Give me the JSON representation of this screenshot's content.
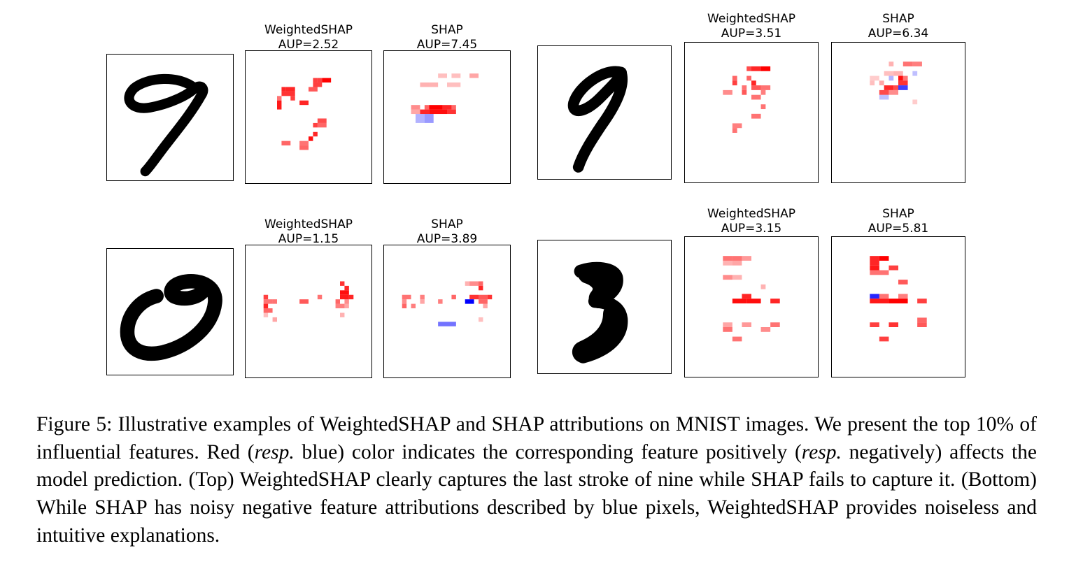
{
  "figure": {
    "examples": [
      {
        "id": "top-left",
        "digit_label": "9",
        "weightedshap": {
          "method": "WeightedSHAP",
          "aup": "AUP=2.52"
        },
        "shap": {
          "method": "SHAP",
          "aup": "AUP=7.45"
        }
      },
      {
        "id": "top-right",
        "digit_label": "9",
        "weightedshap": {
          "method": "WeightedSHAP",
          "aup": "AUP=3.51"
        },
        "shap": {
          "method": "SHAP",
          "aup": "AUP=6.34"
        }
      },
      {
        "id": "bottom-left",
        "digit_label": "0",
        "weightedshap": {
          "method": "WeightedSHAP",
          "aup": "AUP=1.15"
        },
        "shap": {
          "method": "SHAP",
          "aup": "AUP=3.89"
        }
      },
      {
        "id": "bottom-right",
        "digit_label": "3",
        "weightedshap": {
          "method": "WeightedSHAP",
          "aup": "AUP=3.15"
        },
        "shap": {
          "method": "SHAP",
          "aup": "AUP=5.81"
        }
      }
    ],
    "colors": {
      "positive": "#ff0000",
      "negative": "#0000ff",
      "digit_ink": "#000000",
      "panel_border": "#000000"
    }
  },
  "caption": {
    "label": "Figure 5:",
    "t1": "Illustrative examples of WeightedSHAP and SHAP attributions on MNIST images. We present the top 10% of influential features. Red (",
    "em1": "resp.",
    "t2": " blue) color indicates the corresponding feature positively (",
    "em2": "resp.",
    "t3": " negatively) affects the model prediction. (Top) WeightedSHAP clearly captures the last stroke of nine while SHAP fails to capture it. (Bottom) While SHAP has noisy negative feature attributions described by blue pixels, WeightedSHAP provides noiseless and intuitive explanations."
  }
}
